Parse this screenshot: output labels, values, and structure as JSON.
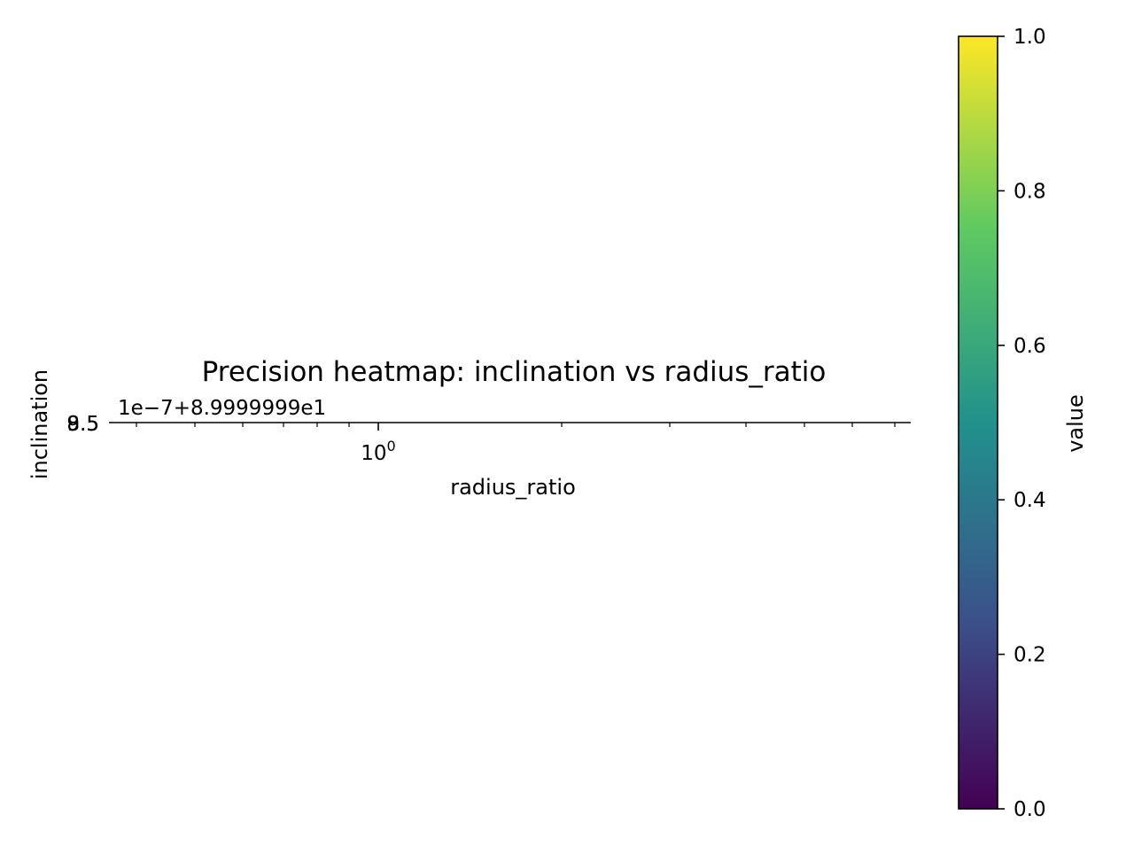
{
  "chart_data": {
    "type": "heatmap",
    "title": "Precision heatmap: inclination vs radius_ratio",
    "xlabel": "radius_ratio",
    "ylabel": "inclination",
    "x_scale": "log",
    "x_tick_labels": [
      {
        "base": "10",
        "exp": "0"
      }
    ],
    "y_tick_labels": [
      "9.5",
      "8.5"
    ],
    "y_offset_text": "1e−7+8.9999999e1",
    "values": [],
    "colorbar": {
      "label": "value",
      "colormap": "viridis",
      "range": [
        0.0,
        1.0
      ],
      "ticks": [
        "0.0",
        "0.2",
        "0.4",
        "0.6",
        "0.8",
        "1.0"
      ],
      "colors": [
        "#440154",
        "#3b528b",
        "#21918c",
        "#5ec962",
        "#fde725"
      ]
    }
  }
}
